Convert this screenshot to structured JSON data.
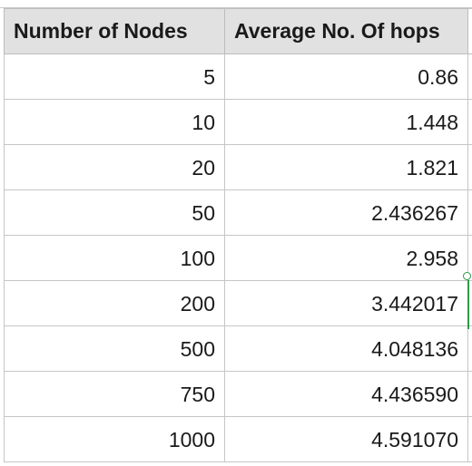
{
  "table": {
    "headers": [
      "Number of Nodes",
      "Average No. Of hops"
    ],
    "rows": [
      {
        "nodes": "5",
        "hops": "0.86"
      },
      {
        "nodes": "10",
        "hops": "1.448"
      },
      {
        "nodes": "20",
        "hops": "1.821"
      },
      {
        "nodes": "50",
        "hops": "2.436267"
      },
      {
        "nodes": "100",
        "hops": "2.958"
      },
      {
        "nodes": "200",
        "hops": "3.442017"
      },
      {
        "nodes": "500",
        "hops": "4.048136"
      },
      {
        "nodes": "750",
        "hops": "4.436590"
      },
      {
        "nodes": "1000",
        "hops": "4.591070"
      }
    ]
  },
  "selection": {
    "accent_color": "#2e9a4a",
    "selected_row": 6,
    "selected_column": 2
  }
}
